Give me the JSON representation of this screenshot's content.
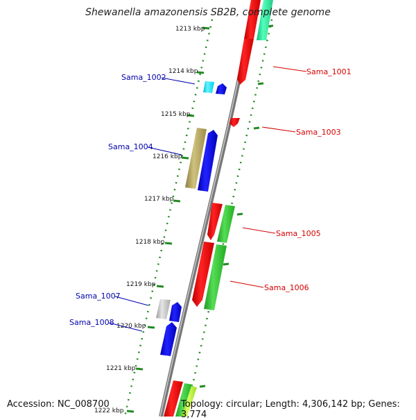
{
  "title": "Shewanella amazonensis SB2B, complete genome",
  "footer": {
    "accession": "Accession: NC_008700",
    "topology": "Topology: circular; Length: 4,306,142 bp; Genes: 3,774"
  },
  "ticks": [
    "1213 kbp",
    "1214 kbp",
    "1215 kbp",
    "1216 kbp",
    "1217 kbp",
    "1218 kbp",
    "1219 kbp",
    "1220 kbp",
    "1221 kbp",
    "1222 kbp"
  ],
  "gene_labels": {
    "sama_1001": "Sama_1001",
    "sama_1002": "Sama_1002",
    "sama_1003": "Sama_1003",
    "sama_1004": "Sama_1004",
    "sama_1005": "Sama_1005",
    "sama_1006": "Sama_1006",
    "sama_1007": "Sama_1007",
    "sama_1008": "Sama_1008"
  },
  "colors": {
    "forward_label": "#d40000",
    "reverse_label": "#0000aa",
    "red_gene": "#ee0000",
    "blue_gene": "#0000ee",
    "teal_gene": "#22dd99",
    "green_gene": "#33cc33",
    "cyan_gene": "#00e5ff",
    "khaki_gene": "#b5a55e",
    "grey_gene": "#bbbbbb",
    "yellowgreen_gene": "#aaee22",
    "backbone": "#888888",
    "dotted_track": "#228b22"
  }
}
